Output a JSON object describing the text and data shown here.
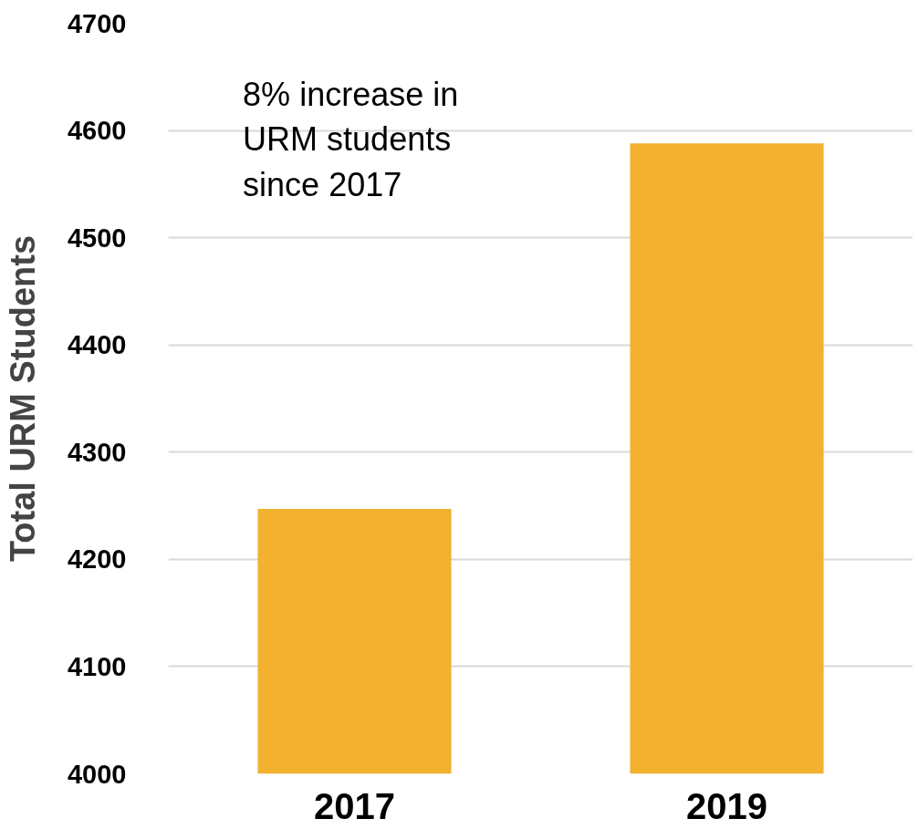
{
  "chart_data": {
    "type": "bar",
    "ylabel": "Total URM Students",
    "categories": [
      "2017",
      "2019"
    ],
    "values": [
      4247,
      4588
    ],
    "color": "#f3b130",
    "ylim": [
      4000,
      4700
    ],
    "yticks": [
      4000,
      4100,
      4200,
      4300,
      4400,
      4500,
      4600,
      4700
    ],
    "grid": "y",
    "annotations": [
      "8% increase in\nURM students\nsince 2017"
    ]
  }
}
